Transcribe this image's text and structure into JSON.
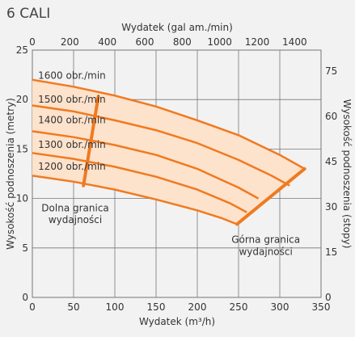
{
  "title": "6 CALI",
  "chart_data": {
    "type": "line",
    "xlabel_bottom": "Wydatek (m³/h)",
    "xlabel_top": "Wydatek (gal am./min)",
    "ylabel_left": "Wysokość podnoszenia (metry)",
    "ylabel_right": "Wysokość podnoszenia (stopy)",
    "xlim_bottom": [
      0,
      350
    ],
    "ylim_left": [
      0,
      25
    ],
    "xlim_top": [
      0,
      1541
    ],
    "ylim_right": [
      0,
      82
    ],
    "x_ticks_bottom": [
      "0",
      "50",
      "100",
      "150",
      "200",
      "250",
      "300",
      "350"
    ],
    "x_ticks_top": [
      "0",
      "200",
      "400",
      "600",
      "800",
      "1000",
      "1200",
      "1400"
    ],
    "y_ticks_left": [
      "0",
      "5",
      "10",
      "15",
      "20",
      "25"
    ],
    "y_ticks_right": [
      "0",
      "15",
      "30",
      "45",
      "60",
      "75"
    ],
    "grid": true,
    "colors": {
      "curve": "#f07a20",
      "region_fill": "#fde2cc",
      "grid": "#777777",
      "background": "#f2f2f2"
    },
    "series": [
      {
        "name": "1600 obr./min",
        "x": [
          0,
          50,
          100,
          150,
          200,
          250,
          300,
          330
        ],
        "y": [
          22.0,
          21.3,
          20.4,
          19.3,
          17.9,
          16.4,
          14.4,
          13.0
        ]
      },
      {
        "name": "1500 obr./min",
        "x": [
          0,
          50,
          100,
          150,
          200,
          250,
          290,
          312
        ],
        "y": [
          19.4,
          18.8,
          17.9,
          16.9,
          15.6,
          13.9,
          12.3,
          11.3
        ]
      },
      {
        "name": "1400 obr./min",
        "x": [
          0,
          50,
          100,
          150,
          200,
          250,
          274
        ],
        "y": [
          16.8,
          16.2,
          15.4,
          14.4,
          13.0,
          11.1,
          10.0
        ]
      },
      {
        "name": "1300 obr./min",
        "x": [
          0,
          50,
          100,
          150,
          200,
          240,
          260
        ],
        "y": [
          14.6,
          14.0,
          13.2,
          12.2,
          10.9,
          9.5,
          8.6
        ]
      },
      {
        "name": "1200 obr./min",
        "x": [
          0,
          50,
          100,
          150,
          200,
          230,
          248
        ],
        "y": [
          12.3,
          11.7,
          10.9,
          9.9,
          8.8,
          8.0,
          7.4
        ]
      }
    ],
    "lower_limit": {
      "label_lines": [
        "Dolna granica",
        "wydajności"
      ],
      "x": [
        62,
        80
      ],
      "y": [
        11.3,
        20.3
      ]
    },
    "upper_limit": {
      "label_lines": [
        "Górna granica",
        "wydajności"
      ],
      "x": [
        248,
        330
      ],
      "y": [
        7.4,
        13.0
      ]
    },
    "curve_label_x": [
      7,
      7,
      7,
      7,
      7
    ],
    "curve_label_y": [
      22.1,
      19.7,
      17.6,
      15.1,
      12.9
    ],
    "lower_label_pos": [
      52,
      8.7,
      7.5
    ],
    "upper_label_pos": [
      283,
      5.5,
      4.3
    ]
  }
}
